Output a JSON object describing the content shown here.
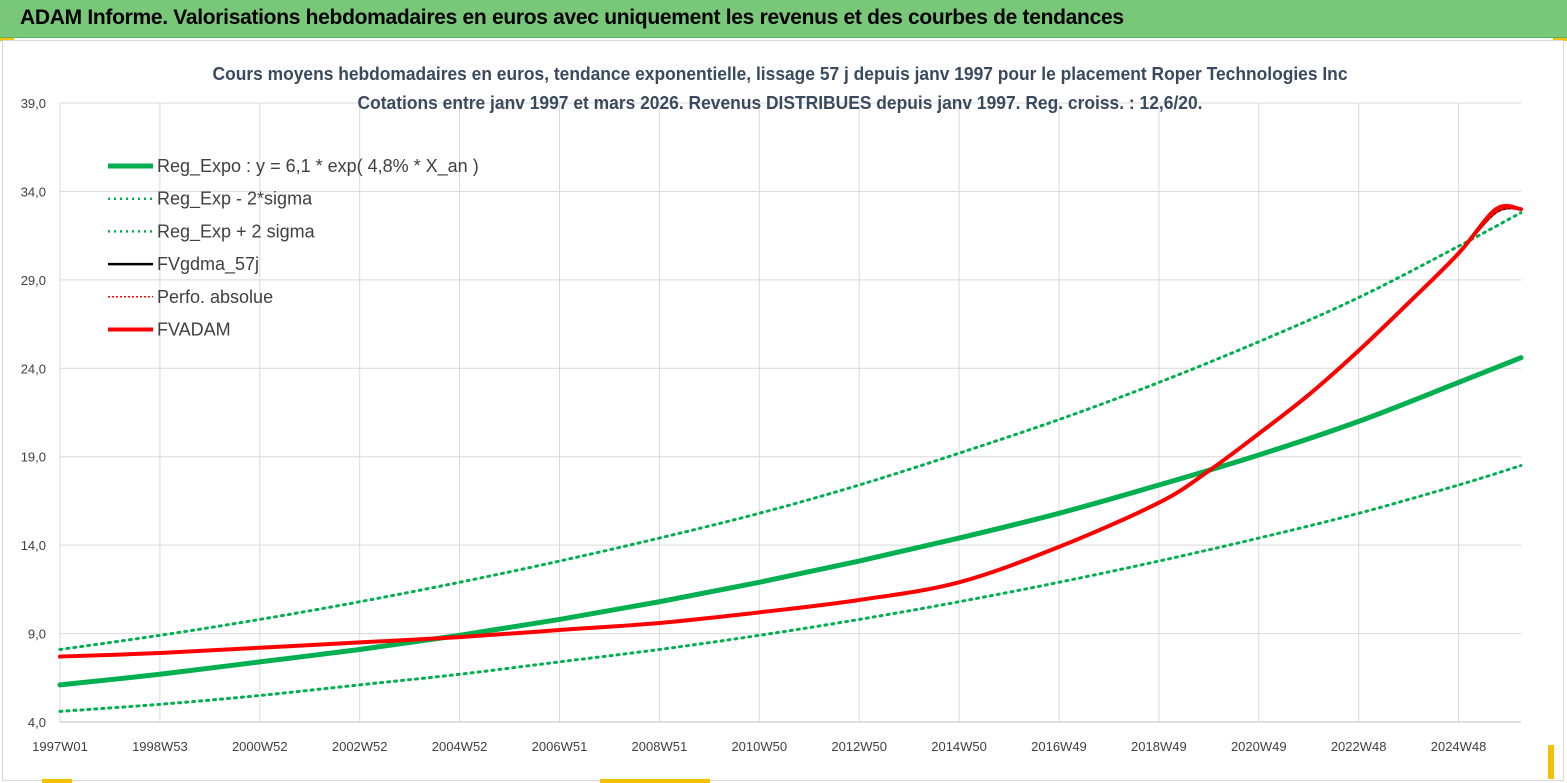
{
  "header": {
    "title": "ADAM Informe. Valorisations hebdomadaires en euros avec uniquement les revenus et des courbes de tendances"
  },
  "colors": {
    "banner": "#79c879",
    "trend": "#00b050",
    "fvadam": "#ff0000",
    "fvgdma": "#000000",
    "grid": "#d9d9d9",
    "accent_yellow": "#f2c200"
  },
  "chart_data": {
    "type": "line",
    "title": "Cours moyens hebdomadaires en euros, tendance exponentielle, lissage 57 j depuis janv 1997 pour le placement Roper Technologies Inc",
    "subtitle": "Cotations entre janv 1997 et mars 2026. Revenus DISTRIBUES depuis janv 1997. Reg. croiss. : 12,6/20.",
    "xlabel": "",
    "ylabel": "",
    "ylim": [
      4.0,
      39.0
    ],
    "xlim": [
      1997.0,
      2026.25
    ],
    "y_ticks": [
      "4,0",
      "9,0",
      "14,0",
      "19,0",
      "24,0",
      "29,0",
      "34,0",
      "39,0"
    ],
    "y_tick_values": [
      4,
      9,
      14,
      19,
      24,
      29,
      34,
      39
    ],
    "x_ticks": [
      "1997W01",
      "1998W53",
      "2000W52",
      "2002W52",
      "2004W52",
      "2006W51",
      "2008W51",
      "2010W50",
      "2012W50",
      "2014W50",
      "2016W49",
      "2018W49",
      "2020W49",
      "2022W48",
      "2024W48"
    ],
    "x_tick_values": [
      1997,
      1999,
      2001,
      2003,
      2005,
      2007,
      2009,
      2011,
      2013,
      2015,
      2017,
      2019,
      2021,
      2023,
      2025
    ],
    "grid": true,
    "legend_position": "top-left",
    "legend": [
      {
        "label": "Reg_Expo : y = 6,1 * exp( 4,8% *  X_an )",
        "color": "#00b050",
        "style": "solid-thick"
      },
      {
        "label": "Reg_Exp - 2*sigma",
        "color": "#00b050",
        "style": "dotted"
      },
      {
        "label": "Reg_Exp + 2 sigma",
        "color": "#00b050",
        "style": "dotted"
      },
      {
        "label": "FVgdma_57j",
        "color": "#000000",
        "style": "solid"
      },
      {
        "label": "Perfo. absolue",
        "color": "#ff0000",
        "style": "dotted"
      },
      {
        "label": "FVADAM",
        "color": "#ff0000",
        "style": "solid-thick"
      }
    ],
    "series": [
      {
        "name": "Reg_Expo : y = 6,1 * exp( 4,8% *  X_an )",
        "x": [
          1997,
          1999,
          2001,
          2003,
          2005,
          2007,
          2009,
          2011,
          2013,
          2015,
          2017,
          2019,
          2021,
          2023,
          2025,
          2026.25
        ],
        "y": [
          6.1,
          6.7,
          7.4,
          8.1,
          8.9,
          9.8,
          10.8,
          11.9,
          13.1,
          14.4,
          15.8,
          17.4,
          19.1,
          21.0,
          23.2,
          24.6
        ]
      },
      {
        "name": "Reg_Exp - 2*sigma",
        "x": [
          1997,
          1999,
          2001,
          2003,
          2005,
          2007,
          2009,
          2011,
          2013,
          2015,
          2017,
          2019,
          2021,
          2023,
          2025,
          2026.25
        ],
        "y": [
          4.6,
          5.0,
          5.5,
          6.1,
          6.7,
          7.4,
          8.1,
          8.9,
          9.8,
          10.8,
          11.9,
          13.1,
          14.4,
          15.8,
          17.4,
          18.5
        ]
      },
      {
        "name": "Reg_Exp + 2 sigma",
        "x": [
          1997,
          1999,
          2001,
          2003,
          2005,
          2007,
          2009,
          2011,
          2013,
          2015,
          2017,
          2019,
          2021,
          2023,
          2025,
          2026.25
        ],
        "y": [
          8.1,
          8.9,
          9.8,
          10.8,
          11.9,
          13.1,
          14.4,
          15.8,
          17.4,
          19.2,
          21.1,
          23.2,
          25.5,
          28.0,
          30.9,
          32.8
        ]
      },
      {
        "name": "FVgdma_57j",
        "x": [
          1997,
          1999,
          2001,
          2003,
          2005,
          2007,
          2009,
          2011,
          2013,
          2015,
          2017,
          2019,
          2020,
          2021,
          2022,
          2023,
          2024,
          2025,
          2025.75,
          2026.25
        ],
        "y": [
          7.7,
          7.9,
          8.2,
          8.5,
          8.8,
          9.2,
          9.6,
          10.2,
          10.9,
          11.9,
          13.9,
          16.4,
          18.2,
          20.3,
          22.5,
          25.0,
          27.7,
          30.5,
          32.8,
          33.0
        ]
      },
      {
        "name": "Perfo. absolue",
        "x": [
          1997,
          1999,
          2001,
          2003,
          2005,
          2007,
          2009,
          2011,
          2013,
          2015,
          2017,
          2019,
          2020,
          2021,
          2022,
          2023,
          2024,
          2025,
          2025.75,
          2026.25
        ],
        "y": [
          7.7,
          7.9,
          8.2,
          8.5,
          8.8,
          9.2,
          9.6,
          10.2,
          10.9,
          11.9,
          13.9,
          16.4,
          18.2,
          20.3,
          22.5,
          25.0,
          27.7,
          30.5,
          32.8,
          33.0
        ]
      },
      {
        "name": "FVADAM",
        "x": [
          1997,
          1999,
          2001,
          2003,
          2005,
          2007,
          2009,
          2011,
          2013,
          2015,
          2017,
          2019,
          2020,
          2021,
          2022,
          2023,
          2024,
          2025,
          2025.75,
          2026.25
        ],
        "y": [
          7.7,
          7.9,
          8.2,
          8.5,
          8.8,
          9.2,
          9.6,
          10.2,
          10.9,
          11.9,
          13.9,
          16.4,
          18.2,
          20.3,
          22.5,
          25.0,
          27.7,
          30.5,
          33.0,
          33.0
        ]
      }
    ]
  }
}
